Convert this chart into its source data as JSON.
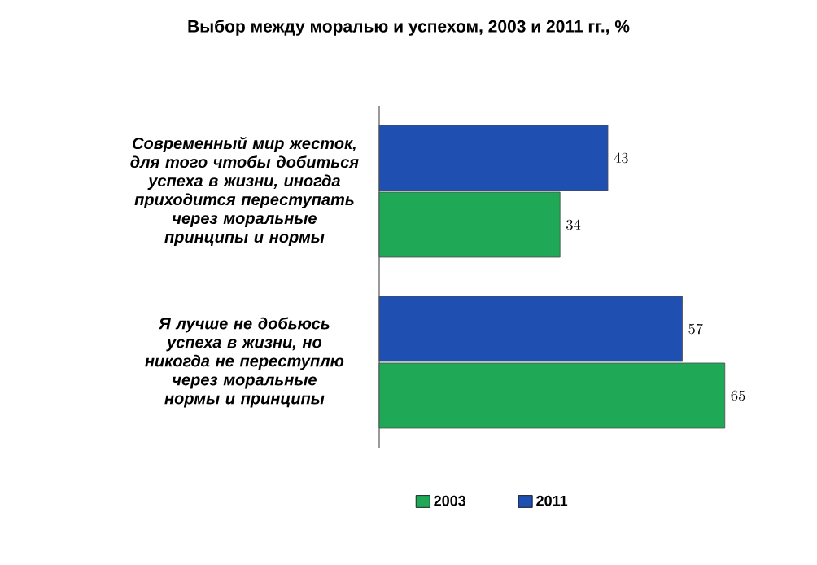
{
  "chart_data": {
    "type": "bar",
    "orientation": "horizontal",
    "title": "Выбор между моралью и успехом, 2003 и 2011 гг., %",
    "categories": [
      "Современный мир жесток, для того чтобы добиться успеха в жизни, иногда приходится переступать через моральные принципы и нормы",
      "Я лучше не добьюсь успеха в жизни, но никогда не переступлю через моральные нормы и принципы"
    ],
    "series": [
      {
        "name": "2003",
        "color": "#1fa855",
        "values": [
          34,
          65
        ]
      },
      {
        "name": "2011",
        "color": "#1f4fb0",
        "values": [
          43,
          57
        ]
      }
    ],
    "data_labels": true,
    "legend": "bottom"
  }
}
